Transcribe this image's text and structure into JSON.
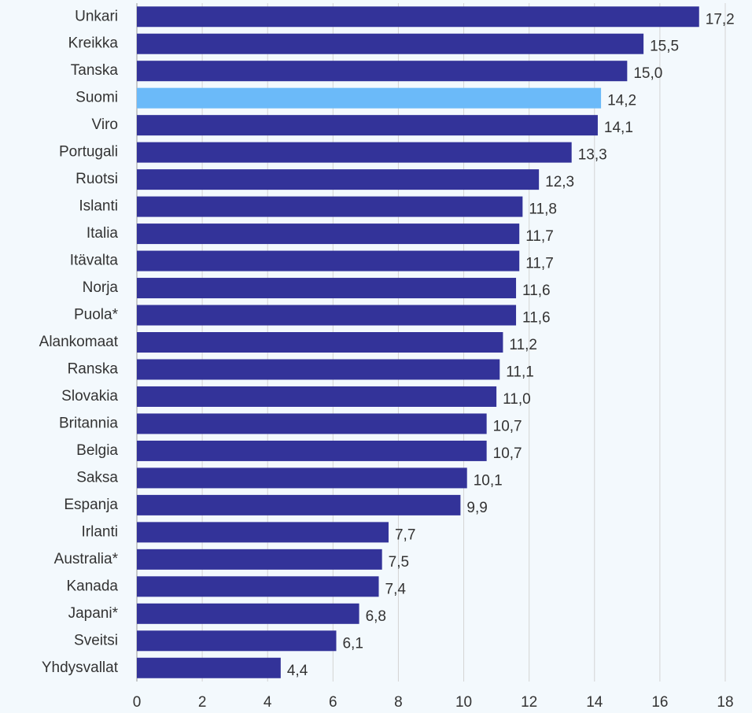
{
  "chart_data": {
    "type": "bar",
    "orientation": "horizontal",
    "categories": [
      "Unkari",
      "Kreikka",
      "Tanska",
      "Suomi",
      "Viro",
      "Portugali",
      "Ruotsi",
      "Islanti",
      "Italia",
      "Itävalta",
      "Norja",
      "Puola*",
      "Alankomaat",
      "Ranska",
      "Slovakia",
      "Britannia",
      "Belgia",
      "Saksa",
      "Espanja",
      "Irlanti",
      "Australia*",
      "Kanada",
      "Japani*",
      "Sveitsi",
      "Yhdysvallat"
    ],
    "values": [
      17.2,
      15.5,
      15.0,
      14.2,
      14.1,
      13.3,
      12.3,
      11.8,
      11.7,
      11.7,
      11.6,
      11.6,
      11.2,
      11.1,
      11.0,
      10.7,
      10.7,
      10.1,
      9.9,
      7.7,
      7.5,
      7.4,
      6.8,
      6.1,
      4.4
    ],
    "value_labels": [
      "17,2",
      "15,5",
      "15,0",
      "14,2",
      "14,1",
      "13,3",
      "12,3",
      "11,8",
      "11,7",
      "11,7",
      "11,6",
      "11,6",
      "11,2",
      "11,1",
      "11,0",
      "10,7",
      "10,7",
      "10,1",
      "9,9",
      "7,7",
      "7,5",
      "7,4",
      "6,8",
      "6,1",
      "4,4"
    ],
    "colors": [
      "#333399",
      "#333399",
      "#333399",
      "#6bbaf9",
      "#333399",
      "#333399",
      "#333399",
      "#333399",
      "#333399",
      "#333399",
      "#333399",
      "#333399",
      "#333399",
      "#333399",
      "#333399",
      "#333399",
      "#333399",
      "#333399",
      "#333399",
      "#333399",
      "#333399",
      "#333399",
      "#333399",
      "#333399",
      "#333399"
    ],
    "xlim": [
      0,
      18
    ],
    "xticks": [
      0,
      2,
      4,
      6,
      8,
      10,
      12,
      14,
      16,
      18
    ],
    "grid": true
  }
}
